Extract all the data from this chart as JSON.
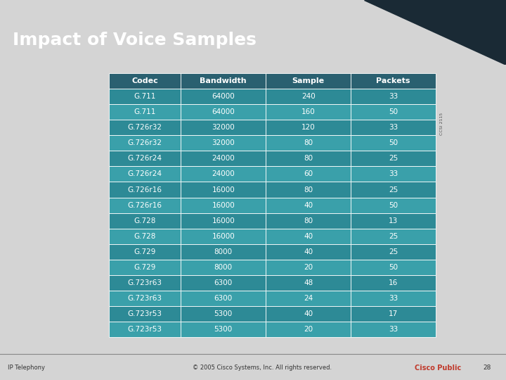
{
  "title": "Impact of Voice Samples",
  "title_color": "#ffffff",
  "title_bg_color": "#3a7d8c",
  "slide_bg_color": "#d4d4d4",
  "content_bg_color": "#c8c8c8",
  "footer_left": "IP Telephony",
  "footer_center": "© 2005 Cisco Systems, Inc. All rights reserved.",
  "footer_right": "Cisco Public",
  "footer_page": "28",
  "table_header": [
    "Codec",
    "Bandwidth",
    "Sample",
    "Packets"
  ],
  "table_data": [
    [
      "G.711",
      "64000",
      "240",
      "33"
    ],
    [
      "G.711",
      "64000",
      "160",
      "50"
    ],
    [
      "G.726r32",
      "32000",
      "120",
      "33"
    ],
    [
      "G.726r32",
      "32000",
      "80",
      "50"
    ],
    [
      "G.726r24",
      "24000",
      "80",
      "25"
    ],
    [
      "G.726r24",
      "24000",
      "60",
      "33"
    ],
    [
      "G.726r16",
      "16000",
      "80",
      "25"
    ],
    [
      "G.726r16",
      "16000",
      "40",
      "50"
    ],
    [
      "G.728",
      "16000",
      "80",
      "13"
    ],
    [
      "G.728",
      "16000",
      "40",
      "25"
    ],
    [
      "G.729",
      "8000",
      "40",
      "25"
    ],
    [
      "G.729",
      "8000",
      "20",
      "50"
    ],
    [
      "G.723r63",
      "6300",
      "48",
      "16"
    ],
    [
      "G.723r63",
      "6300",
      "24",
      "33"
    ],
    [
      "G.723r53",
      "5300",
      "40",
      "17"
    ],
    [
      "G.723r53",
      "5300",
      "20",
      "33"
    ]
  ],
  "header_bg_color": "#2a6070",
  "row_color_a": "#2d8a96",
  "row_color_b": "#3aA0aa",
  "table_text_color": "#ffffff",
  "header_text_color": "#ffffff",
  "top_right_triangle": "#1a2a35",
  "footer_bg_color": "#b0b0b0",
  "watermark": "CCSI 2115"
}
